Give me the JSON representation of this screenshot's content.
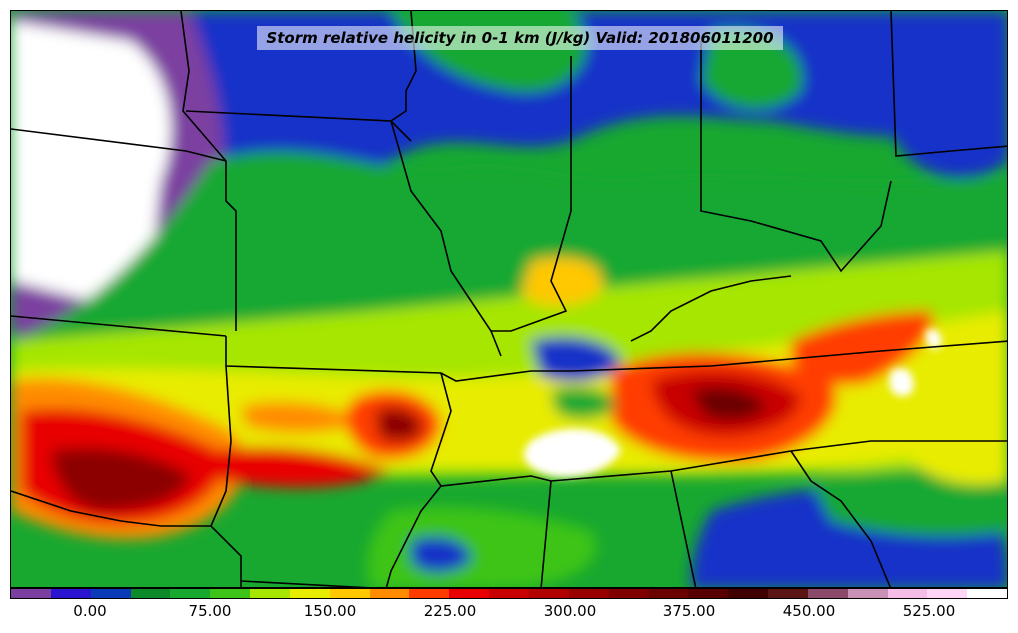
{
  "title": "Storm relative helicity in 0-1 km (J/kg) Valid: 201806011200",
  "colorbar": {
    "tick_labels": [
      "0.00",
      "75.00",
      "150.00",
      "225.00",
      "300.00",
      "375.00",
      "450.00",
      "525.00"
    ],
    "colors": [
      "#7b3fa0",
      "#2a14d0",
      "#0a3ab8",
      "#0c8a2a",
      "#18a830",
      "#3ec418",
      "#a6e600",
      "#e8ec00",
      "#ffc800",
      "#ff8c00",
      "#ff3c00",
      "#e80000",
      "#c80000",
      "#b00000",
      "#980000",
      "#800000",
      "#6a0000",
      "#580000",
      "#400000",
      "#5a1414",
      "#8c4a6a",
      "#c890b4",
      "#f4bce6",
      "#ffd6f6",
      "#ffffff"
    ]
  },
  "map_colors": {
    "low_negative": "#7b3fa0",
    "blue": "#1433c8",
    "green": "#18a830",
    "yellow_green": "#a6e600",
    "yellow": "#e8ec00",
    "orange": "#ff8c00",
    "red": "#e80000",
    "dark_red": "#8c0000",
    "missing": "#ffffff"
  }
}
